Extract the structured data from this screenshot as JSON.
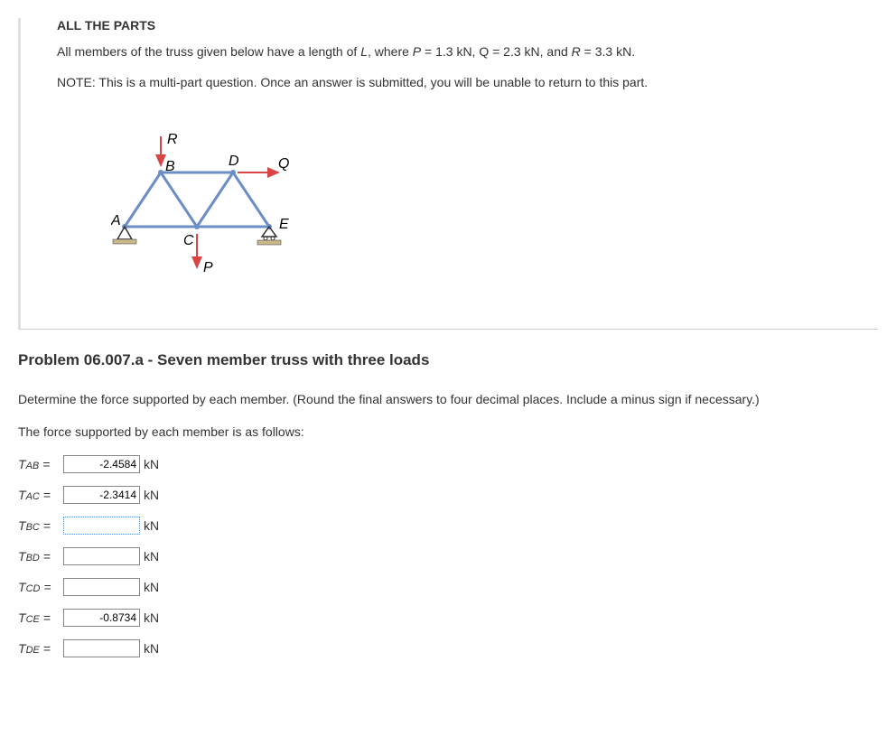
{
  "header": {
    "title_parts": "ALL THE PARTS",
    "description_prefix": "All members of the truss given below have a length of ",
    "description_L": "L",
    "description_mid": ", where ",
    "description_P": "P",
    "description_Pval": " = 1.3 kN, Q = 2.3 kN, and ",
    "description_R": "R",
    "description_Rval": " = 3.3 kN.",
    "note": "NOTE: This is a multi-part question. Once an answer is submitted, you will be unable to return to this part."
  },
  "diagram": {
    "labels": {
      "A": "A",
      "B": "B",
      "C": "C",
      "D": "D",
      "E": "E",
      "P": "P",
      "Q": "Q",
      "R": "R"
    },
    "colors": {
      "member": "#6b8fc4",
      "arrow": "#d94545",
      "text": "#000000",
      "support": "#c9b88a"
    }
  },
  "problem": {
    "heading": "Problem 06.007.a - Seven member truss with three loads",
    "instruction": "Determine the force supported by each member. (Round the final answers to four decimal places. Include a minus sign if necessary.)",
    "result_intro": "The force supported by each member is as follows:"
  },
  "answers": [
    {
      "label_main": "T",
      "label_sub": "AB",
      "equals": " = ",
      "value": "-2.4584",
      "unit": "kN",
      "focused": false
    },
    {
      "label_main": "T",
      "label_sub": "AC",
      "equals": " = ",
      "value": "-2.3414",
      "unit": "kN",
      "focused": false
    },
    {
      "label_main": "T",
      "label_sub": "BC",
      "equals": " = ",
      "value": "",
      "unit": "kN",
      "focused": true
    },
    {
      "label_main": "T",
      "label_sub": "BD",
      "equals": " = ",
      "value": "",
      "unit": "kN",
      "focused": false
    },
    {
      "label_main": "T",
      "label_sub": "CD",
      "equals": " = ",
      "value": "",
      "unit": "kN",
      "focused": false
    },
    {
      "label_main": "T",
      "label_sub": "CE",
      "equals": " = ",
      "value": "-0.8734",
      "unit": "kN",
      "focused": false
    },
    {
      "label_main": "T",
      "label_sub": "DE",
      "equals": " = ",
      "value": "",
      "unit": "kN",
      "focused": false
    }
  ]
}
